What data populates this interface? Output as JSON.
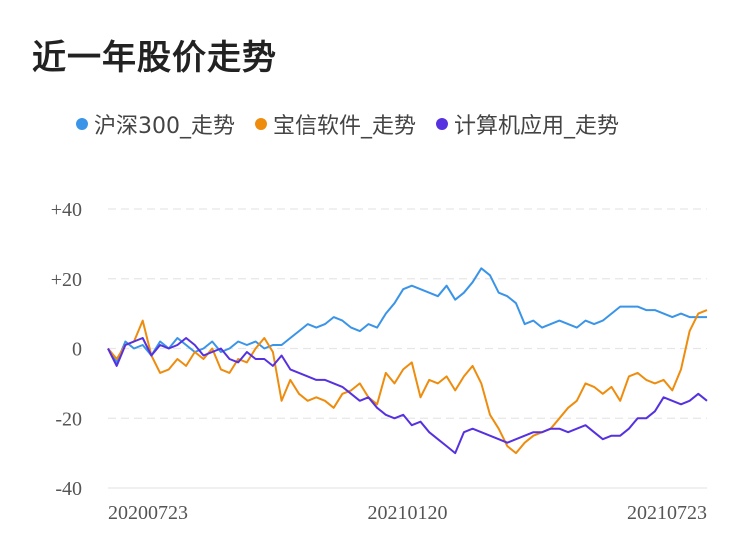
{
  "title": "近一年股价走势",
  "colors": {
    "hs300": "#3a94e8",
    "baoxin": "#ee8c0e",
    "sector": "#5631e0",
    "grid": "#e6e6e6"
  },
  "chart_data": {
    "type": "line",
    "title": "近一年股价走势",
    "xlabel": "",
    "ylabel": "",
    "ylim": [
      -40,
      40
    ],
    "yticks": [
      "+40",
      "+20",
      "0",
      "-20",
      "-40"
    ],
    "ytick_values": [
      40,
      20,
      0,
      -20,
      -40
    ],
    "xticks": [
      "20200723",
      "20210120",
      "20210723"
    ],
    "xtick_positions": [
      0,
      0.5,
      1
    ],
    "grid": true,
    "legend_position": "top",
    "series": [
      {
        "name": "沪深300_走势",
        "color": "#3a94e8",
        "values": [
          0,
          -4,
          2,
          0,
          1,
          -2,
          2,
          0,
          3,
          1,
          -1,
          0,
          2,
          -1,
          0,
          2,
          1,
          2,
          0,
          1,
          1,
          3,
          5,
          7,
          6,
          7,
          9,
          8,
          6,
          5,
          7,
          6,
          10,
          13,
          17,
          18,
          17,
          16,
          15,
          18,
          14,
          16,
          19,
          23,
          21,
          16,
          15,
          13,
          7,
          8,
          6,
          7,
          8,
          7,
          6,
          8,
          7,
          8,
          10,
          12,
          12,
          12,
          11,
          11,
          10,
          9,
          10,
          9,
          9,
          9
        ]
      },
      {
        "name": "宝信软件_走势",
        "color": "#ee8c0e",
        "values": [
          0,
          -3,
          1,
          2,
          8,
          -2,
          -7,
          -6,
          -3,
          -5,
          -1,
          -3,
          0,
          -6,
          -7,
          -3,
          -4,
          0,
          3,
          -1,
          -15,
          -9,
          -13,
          -15,
          -14,
          -15,
          -17,
          -13,
          -12,
          -10,
          -14,
          -16,
          -7,
          -10,
          -6,
          -4,
          -14,
          -9,
          -10,
          -8,
          -12,
          -8,
          -5,
          -10,
          -19,
          -23,
          -28,
          -30,
          -27,
          -25,
          -24,
          -23,
          -20,
          -17,
          -15,
          -10,
          -11,
          -13,
          -11,
          -15,
          -8,
          -7,
          -9,
          -10,
          -9,
          -12,
          -6,
          5,
          10,
          11
        ]
      },
      {
        "name": "计算机应用_走势",
        "color": "#5631e0",
        "values": [
          0,
          -5,
          1,
          2,
          3,
          -2,
          1,
          0,
          1,
          3,
          1,
          -2,
          -1,
          0,
          -3,
          -4,
          -1,
          -3,
          -3,
          -5,
          -2,
          -6,
          -7,
          -8,
          -9,
          -9,
          -10,
          -11,
          -13,
          -15,
          -14,
          -17,
          -19,
          -20,
          -19,
          -22,
          -21,
          -24,
          -26,
          -28,
          -30,
          -24,
          -23,
          -24,
          -25,
          -26,
          -27,
          -26,
          -25,
          -24,
          -24,
          -23,
          -23,
          -24,
          -23,
          -22,
          -24,
          -26,
          -25,
          -25,
          -23,
          -20,
          -20,
          -18,
          -14,
          -15,
          -16,
          -15,
          -13,
          -15
        ]
      }
    ]
  }
}
